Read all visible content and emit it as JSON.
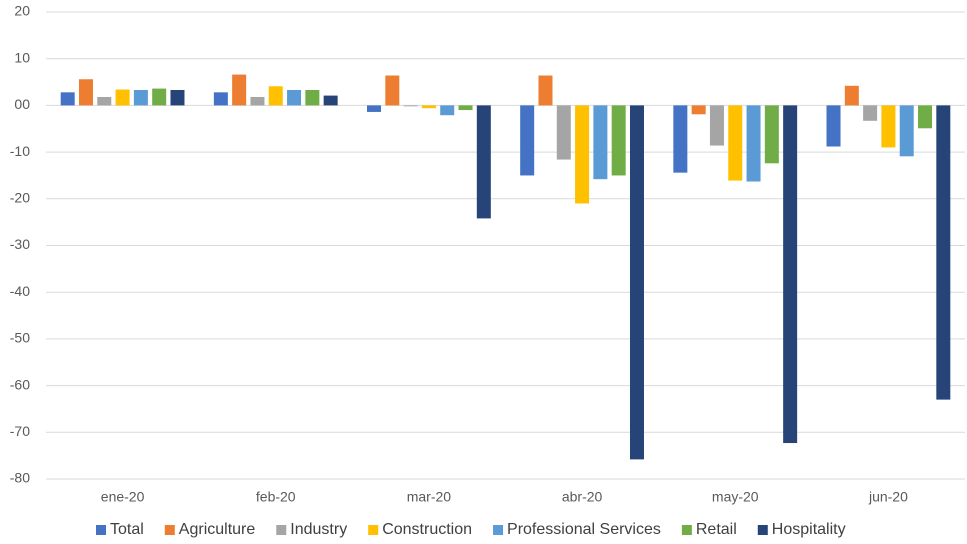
{
  "chart_data": {
    "type": "bar",
    "categories": [
      "ene-20",
      "feb-20",
      "mar-20",
      "abr-20",
      "may-20",
      "jun-20"
    ],
    "series": [
      {
        "name": "Total",
        "color": "#4472c4",
        "values": [
          2.8,
          2.8,
          -1.4,
          -15.0,
          -14.4,
          -8.8
        ]
      },
      {
        "name": "Agriculture",
        "color": "#ed7d31",
        "values": [
          5.6,
          6.6,
          6.4,
          6.4,
          -1.9,
          4.2
        ]
      },
      {
        "name": "Industry",
        "color": "#a5a5a5",
        "values": [
          1.8,
          1.8,
          -0.2,
          -11.6,
          -8.6,
          -3.3
        ]
      },
      {
        "name": "Construction",
        "color": "#ffc000",
        "values": [
          3.4,
          4.1,
          -0.6,
          -21.0,
          -16.1,
          -9.0
        ]
      },
      {
        "name": "Professional Services",
        "color": "#5b9bd5",
        "values": [
          3.3,
          3.3,
          -2.1,
          -15.8,
          -16.3,
          -10.9
        ]
      },
      {
        "name": "Retail",
        "color": "#70ad47",
        "values": [
          3.6,
          3.3,
          -1.0,
          -15.0,
          -12.4,
          -4.9
        ]
      },
      {
        "name": "Hospitality",
        "color": "#264478",
        "values": [
          3.3,
          2.1,
          -24.2,
          -75.8,
          -72.3,
          -63.0
        ]
      }
    ],
    "ylim": [
      -80,
      20
    ],
    "yticks": [
      20,
      10,
      {
        "value": 0,
        "label": "00"
      },
      -10,
      -20,
      -30,
      -40,
      -50,
      -60,
      -70,
      -80
    ],
    "grid": true,
    "legend": "bottom"
  }
}
